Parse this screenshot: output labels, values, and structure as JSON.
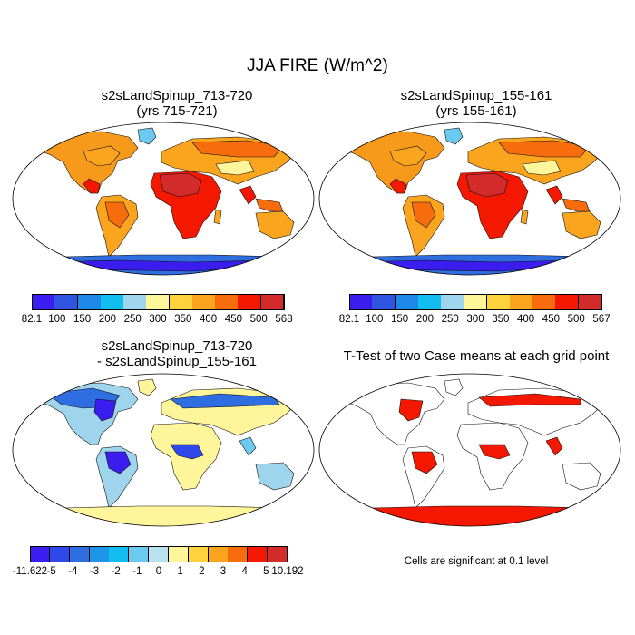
{
  "title": "JJA FIRE (W/m^2)",
  "panels": [
    {
      "title_line1": "s2sLandSpinup_713-720",
      "title_line2": "(yrs 715-721)"
    },
    {
      "title_line1": "s2sLandSpinup_155-161",
      "title_line2": "(yrs 155-161)"
    },
    {
      "title_line1": "s2sLandSpinup_713-720",
      "title_line2": "- s2sLandSpinup_155-161"
    },
    {
      "title_line1": "T-Test of two Case means at each grid point"
    }
  ],
  "note": "Cells are significant at 0.1 level",
  "colorbars": [
    {
      "labels": [
        "82.1",
        "100",
        "150",
        "200",
        "250",
        "300",
        "350",
        "400",
        "450",
        "500",
        "568"
      ],
      "colors": [
        "#3b1df0",
        "#2f55e0",
        "#1e88e8",
        "#12bdf0",
        "#9ed4ec",
        "#fff59a",
        "#fdd23c",
        "#fba41e",
        "#f76c0c",
        "#f41800",
        "#d32a2a"
      ]
    },
    {
      "labels": [
        "82.1",
        "100",
        "150",
        "200",
        "250",
        "300",
        "350",
        "400",
        "450",
        "500",
        "567"
      ],
      "colors": [
        "#3b1df0",
        "#2f55e0",
        "#1e88e8",
        "#12bdf0",
        "#9ed4ec",
        "#fff59a",
        "#fdd23c",
        "#fba41e",
        "#f76c0c",
        "#f41800",
        "#d32a2a"
      ]
    },
    {
      "labels": [
        "-11.622",
        "-5",
        "-4",
        "-3",
        "-2",
        "-1",
        "0",
        "1",
        "2",
        "3",
        "4",
        "5",
        "10.192"
      ],
      "colors": [
        "#3b1df0",
        "#2f48ea",
        "#2f6ee0",
        "#1e96e8",
        "#12bdf0",
        "#6ccaf0",
        "#b8e2f0",
        "#fff59a",
        "#fdd23c",
        "#fba41e",
        "#f76c0c",
        "#f41800",
        "#d32a2a"
      ]
    }
  ]
}
